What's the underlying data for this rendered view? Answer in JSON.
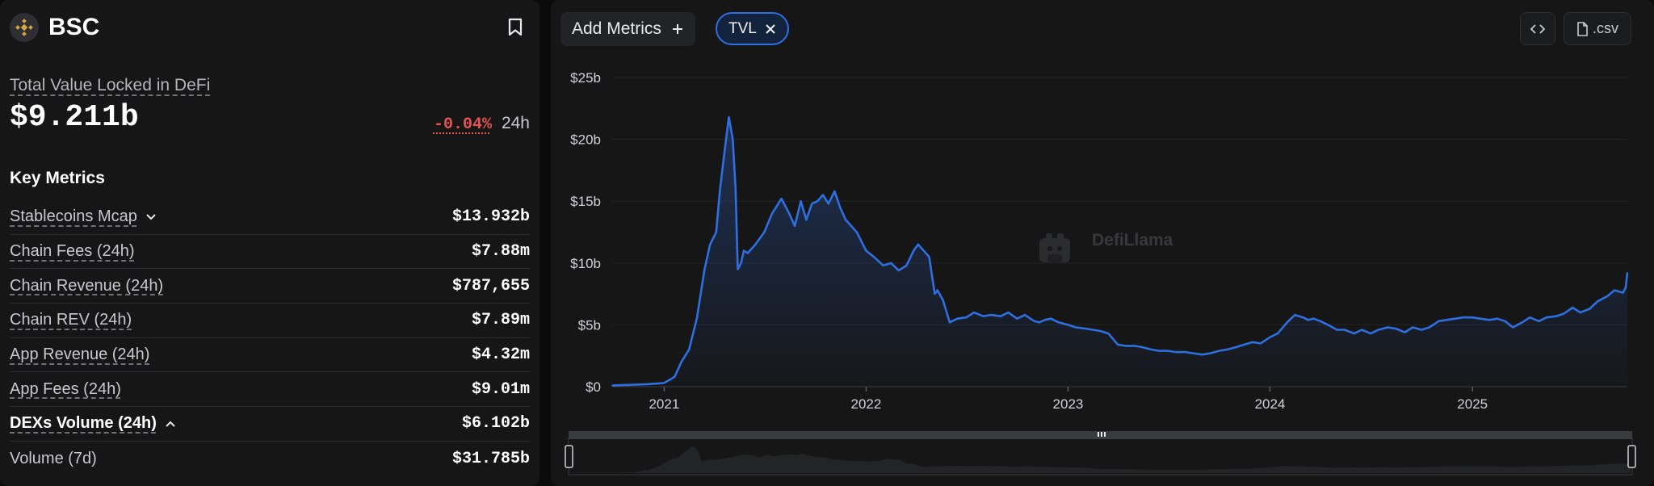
{
  "chain": {
    "name": "BSC"
  },
  "tvl": {
    "label": "Total Value Locked in DeFi",
    "value": "$9.211b",
    "change": "-0.04%",
    "period": "24h"
  },
  "key_metrics": {
    "title": "Key Metrics",
    "items": [
      {
        "label": "Stablecoins Mcap",
        "value": "$13.932b"
      },
      {
        "label": "Chain Fees (24h)",
        "value": "$7.88m"
      },
      {
        "label": "Chain Revenue (24h)",
        "value": "$787,655"
      },
      {
        "label": "Chain REV (24h)",
        "value": "$7.89m"
      },
      {
        "label": "App Revenue (24h)",
        "value": "$4.32m"
      },
      {
        "label": "App Fees (24h)",
        "value": "$9.01m"
      },
      {
        "label": "DEXs Volume (24h)",
        "value": "$6.102b"
      },
      {
        "label": "Volume (7d)",
        "value": "$31.785b"
      }
    ]
  },
  "toolbar": {
    "add_metrics": "Add Metrics",
    "chip": "TVL",
    "csv": ".csv"
  },
  "watermark": "DefiLlama",
  "colors": {
    "line": "#2f6fe0",
    "accent": "#2f6fe0",
    "negative": "#e55353"
  },
  "chart_data": {
    "type": "area",
    "series": [
      {
        "name": "TVL",
        "x": [
          "2020-09-29",
          "2020-11-01",
          "2020-12-01",
          "2021-01-01",
          "2021-01-20",
          "2021-02-01",
          "2021-02-15",
          "2021-03-01",
          "2021-03-15",
          "2021-03-25",
          "2021-04-05",
          "2021-04-12",
          "2021-04-20",
          "2021-04-28",
          "2021-05-05",
          "2021-05-10",
          "2021-05-14",
          "2021-05-20",
          "2021-05-25",
          "2021-06-01",
          "2021-06-15",
          "2021-07-01",
          "2021-07-15",
          "2021-08-01",
          "2021-08-15",
          "2021-08-25",
          "2021-09-05",
          "2021-09-15",
          "2021-09-25",
          "2021-10-05",
          "2021-10-15",
          "2021-10-25",
          "2021-11-05",
          "2021-11-15",
          "2021-11-25",
          "2021-12-05",
          "2021-12-15",
          "2022-01-01",
          "2022-01-15",
          "2022-02-01",
          "2022-02-15",
          "2022-03-01",
          "2022-03-15",
          "2022-03-28",
          "2022-04-05",
          "2022-04-15",
          "2022-04-25",
          "2022-05-05",
          "2022-05-10",
          "2022-05-20",
          "2022-06-01",
          "2022-06-15",
          "2022-07-01",
          "2022-07-15",
          "2022-08-01",
          "2022-08-15",
          "2022-09-01",
          "2022-09-15",
          "2022-10-01",
          "2022-10-15",
          "2022-11-01",
          "2022-11-10",
          "2022-11-20",
          "2022-12-01",
          "2022-12-15",
          "2023-01-01",
          "2023-01-15",
          "2023-02-01",
          "2023-02-15",
          "2023-03-01",
          "2023-03-15",
          "2023-04-01",
          "2023-04-15",
          "2023-05-01",
          "2023-05-15",
          "2023-06-01",
          "2023-06-15",
          "2023-07-01",
          "2023-07-15",
          "2023-08-01",
          "2023-08-15",
          "2023-09-01",
          "2023-09-15",
          "2023-10-01",
          "2023-10-15",
          "2023-11-01",
          "2023-11-15",
          "2023-12-01",
          "2023-12-15",
          "2024-01-01",
          "2024-01-15",
          "2024-02-01",
          "2024-02-15",
          "2024-03-01",
          "2024-03-10",
          "2024-03-20",
          "2024-04-01",
          "2024-04-15",
          "2024-05-01",
          "2024-05-15",
          "2024-06-01",
          "2024-06-15",
          "2024-07-01",
          "2024-07-15",
          "2024-08-01",
          "2024-08-15",
          "2024-09-01",
          "2024-09-15",
          "2024-10-01",
          "2024-10-15",
          "2024-11-01",
          "2024-11-15",
          "2024-12-01",
          "2024-12-15",
          "2025-01-01",
          "2025-01-15",
          "2025-02-01",
          "2025-02-15",
          "2025-03-01",
          "2025-03-15",
          "2025-04-01",
          "2025-04-15",
          "2025-05-01",
          "2025-05-15",
          "2025-06-01",
          "2025-06-15",
          "2025-07-01",
          "2025-07-15",
          "2025-08-01",
          "2025-08-15",
          "2025-09-01",
          "2025-09-15",
          "2025-09-30",
          "2025-10-05",
          "2025-10-08"
        ],
        "y": [
          0.1,
          0.15,
          0.2,
          0.3,
          0.8,
          2.0,
          3.0,
          5.5,
          9.5,
          11.5,
          12.5,
          16.0,
          19.0,
          21.8,
          20.0,
          16.0,
          9.5,
          10.0,
          11.0,
          10.8,
          11.5,
          12.5,
          14.0,
          15.2,
          14.0,
          13.0,
          15.0,
          13.5,
          14.8,
          15.0,
          15.5,
          14.8,
          15.8,
          14.5,
          13.5,
          13.0,
          12.5,
          11.0,
          10.5,
          9.8,
          10.0,
          9.4,
          9.8,
          11.0,
          11.5,
          11.0,
          10.5,
          7.5,
          7.8,
          7.0,
          5.2,
          5.5,
          5.6,
          6.0,
          5.7,
          5.8,
          5.7,
          6.0,
          5.5,
          5.8,
          5.3,
          5.2,
          5.4,
          5.5,
          5.2,
          5.0,
          4.8,
          4.7,
          4.6,
          4.5,
          4.3,
          3.4,
          3.3,
          3.3,
          3.2,
          3.0,
          2.9,
          2.9,
          2.8,
          2.8,
          2.7,
          2.6,
          2.7,
          2.9,
          3.0,
          3.2,
          3.4,
          3.6,
          3.5,
          4.0,
          4.3,
          5.2,
          5.8,
          5.6,
          5.4,
          5.5,
          5.3,
          5.0,
          4.6,
          4.6,
          4.3,
          4.6,
          4.3,
          4.6,
          4.8,
          4.7,
          4.4,
          4.8,
          4.6,
          4.8,
          5.3,
          5.4,
          5.5,
          5.6,
          5.6,
          5.5,
          5.4,
          5.5,
          5.3,
          4.8,
          5.2,
          5.6,
          5.3,
          5.6,
          5.7,
          5.9,
          6.4,
          6.0,
          6.3,
          6.9,
          7.3,
          7.8,
          7.6,
          8.0,
          9.211
        ]
      }
    ],
    "ylim": [
      0,
      25
    ],
    "y_ticks": [
      "$0",
      "$5b",
      "$10b",
      "$15b",
      "$20b",
      "$25b"
    ],
    "y_tick_values": [
      0,
      5,
      10,
      15,
      20,
      25
    ],
    "x_ticks": [
      "2021",
      "2022",
      "2023",
      "2024",
      "2025"
    ],
    "x_tick_dates": [
      "2021-01-01",
      "2022-01-01",
      "2023-01-01",
      "2024-01-01",
      "2025-01-01"
    ],
    "x_range": [
      "2020-09-29",
      "2025-10-08"
    ],
    "grid": true,
    "legend": "none"
  }
}
